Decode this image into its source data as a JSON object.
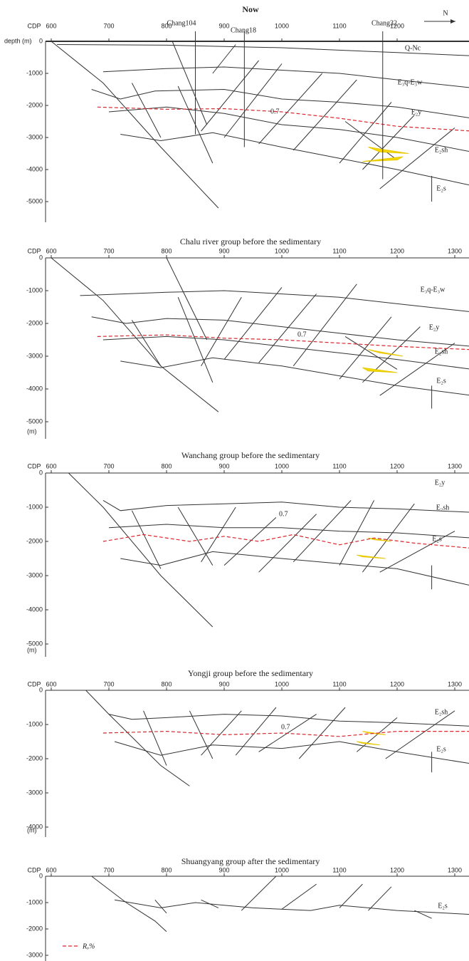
{
  "north": "N",
  "legend": {
    "label": "Rₒ%"
  },
  "panels": [
    {
      "title": "Now",
      "x_axis_label": "CDP",
      "y_unit": "depth (m)",
      "x_ticks": [
        "600",
        "700",
        "800",
        "900",
        "1000",
        "1100",
        "1200"
      ],
      "y_ticks": [
        "0",
        "-1000",
        "-2000",
        "-3000",
        "-4000",
        "-5000"
      ],
      "wells": [
        "Chang104",
        "Chang18",
        "Chang32"
      ],
      "layers": [
        "Q-Nc",
        "E₃q-E₃w",
        "E₂y",
        "E₂sh",
        "E₂s"
      ],
      "ro_label": "0.7"
    },
    {
      "title": "Chalu river group before the sedimentary",
      "x_axis_label": "CDP",
      "y_unit": "(m)",
      "x_ticks": [
        "600",
        "700",
        "800",
        "900",
        "1000",
        "1100",
        "1200",
        "1300"
      ],
      "y_ticks": [
        "0",
        "-1000",
        "-2000",
        "-3000",
        "-4000",
        "-5000"
      ],
      "layers": [
        "E₃q-E₃w",
        "E₂y",
        "E₂sh",
        "E₂s"
      ],
      "ro_label": "0.7"
    },
    {
      "title": "Wanchang group before the sedimentary",
      "x_axis_label": "CDP",
      "y_unit": "(m)",
      "x_ticks": [
        "600",
        "700",
        "800",
        "900",
        "1000",
        "1100",
        "1200",
        "1300"
      ],
      "y_ticks": [
        "0",
        "-1000",
        "-2000",
        "-3000",
        "-4000",
        "-5000"
      ],
      "layers": [
        "E₂y",
        "E₂sh",
        "E₂s"
      ],
      "ro_label": "0.7"
    },
    {
      "title": "Yongji group before the sedimentary",
      "x_axis_label": "CDP",
      "y_unit": "(m)",
      "x_ticks": [
        "600",
        "700",
        "800",
        "900",
        "1000",
        "1100",
        "1200",
        "1300"
      ],
      "y_ticks": [
        "0",
        "-1000",
        "-2000",
        "-3000",
        "-4000"
      ],
      "layers": [
        "E₂sh",
        "E₂s"
      ],
      "ro_label": "0.7"
    },
    {
      "title": "Shuangyang group after the sedimentary",
      "x_axis_label": "CDP",
      "x_ticks": [
        "600",
        "700",
        "800",
        "900",
        "1000",
        "1100",
        "1200",
        "1300"
      ],
      "y_ticks": [
        "0",
        "-1000",
        "-2000",
        "-3000"
      ],
      "layers": [
        "E₂s"
      ]
    }
  ]
}
